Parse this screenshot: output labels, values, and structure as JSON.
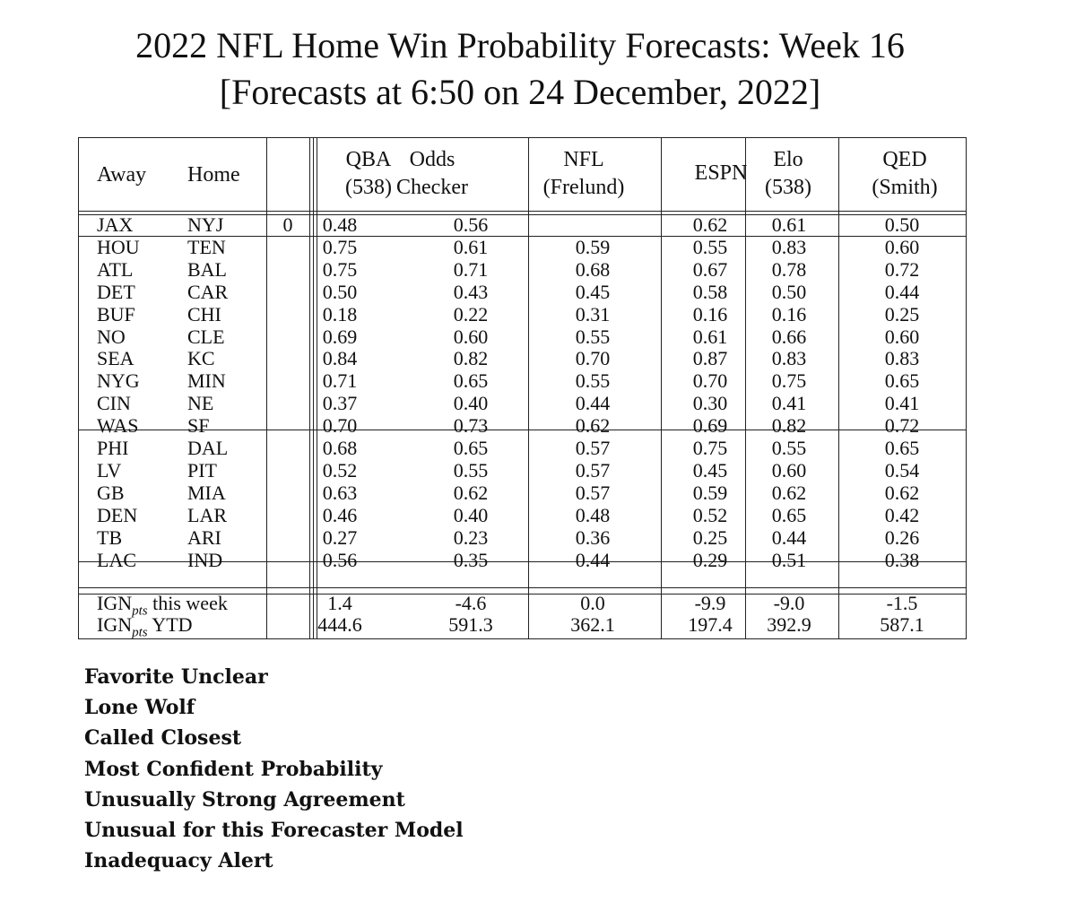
{
  "title_line1": "2022 NFL Home Win Probability Forecasts: Week 16",
  "title_line2": "[Forecasts at 6:50 on 24 December, 2022]",
  "headers": {
    "away": "Away",
    "home": "Home",
    "qba": [
      "QBA",
      "(538)"
    ],
    "odds": [
      "Odds",
      "Checker"
    ],
    "nfl": [
      "NFL",
      "(Frelund)"
    ],
    "espn": [
      "ESPN"
    ],
    "elo": [
      "Elo",
      "(538)"
    ],
    "qed": [
      "QED",
      "(Smith)"
    ]
  },
  "games": [
    {
      "away": "JAX",
      "home": "NYJ",
      "flag": "0",
      "qba": "0.48",
      "odds": "0.56",
      "nfl": "",
      "espn": "0.62",
      "elo": "0.61",
      "qed": "0.50"
    },
    {
      "away": "HOU",
      "home": "TEN",
      "flag": "",
      "qba": "0.75",
      "odds": "0.61",
      "nfl": "0.59",
      "espn": "0.55",
      "elo": "0.83",
      "qed": "0.60"
    },
    {
      "away": "ATL",
      "home": "BAL",
      "flag": "",
      "qba": "0.75",
      "odds": "0.71",
      "nfl": "0.68",
      "espn": "0.67",
      "elo": "0.78",
      "qed": "0.72"
    },
    {
      "away": "DET",
      "home": "CAR",
      "flag": "",
      "qba": "0.50",
      "odds": "0.43",
      "nfl": "0.45",
      "espn": "0.58",
      "elo": "0.50",
      "qed": "0.44"
    },
    {
      "away": "BUF",
      "home": "CHI",
      "flag": "",
      "qba": "0.18",
      "odds": "0.22",
      "nfl": "0.31",
      "espn": "0.16",
      "elo": "0.16",
      "qed": "0.25"
    },
    {
      "away": "NO",
      "home": "CLE",
      "flag": "",
      "qba": "0.69",
      "odds": "0.60",
      "nfl": "0.55",
      "espn": "0.61",
      "elo": "0.66",
      "qed": "0.60"
    },
    {
      "away": "SEA",
      "home": "KC",
      "flag": "",
      "qba": "0.84",
      "odds": "0.82",
      "nfl": "0.70",
      "espn": "0.87",
      "elo": "0.83",
      "qed": "0.83"
    },
    {
      "away": "NYG",
      "home": "MIN",
      "flag": "",
      "qba": "0.71",
      "odds": "0.65",
      "nfl": "0.55",
      "espn": "0.70",
      "elo": "0.75",
      "qed": "0.65"
    },
    {
      "away": "CIN",
      "home": "NE",
      "flag": "",
      "qba": "0.37",
      "odds": "0.40",
      "nfl": "0.44",
      "espn": "0.30",
      "elo": "0.41",
      "qed": "0.41"
    },
    {
      "away": "WAS",
      "home": "SF",
      "flag": "",
      "qba": "0.70",
      "odds": "0.73",
      "nfl": "0.62",
      "espn": "0.69",
      "elo": "0.82",
      "qed": "0.72"
    },
    {
      "away": "PHI",
      "home": "DAL",
      "flag": "",
      "qba": "0.68",
      "odds": "0.65",
      "nfl": "0.57",
      "espn": "0.75",
      "elo": "0.55",
      "qed": "0.65"
    },
    {
      "away": "LV",
      "home": "PIT",
      "flag": "",
      "qba": "0.52",
      "odds": "0.55",
      "nfl": "0.57",
      "espn": "0.45",
      "elo": "0.60",
      "qed": "0.54"
    },
    {
      "away": "GB",
      "home": "MIA",
      "flag": "",
      "qba": "0.63",
      "odds": "0.62",
      "nfl": "0.57",
      "espn": "0.59",
      "elo": "0.62",
      "qed": "0.62"
    },
    {
      "away": "DEN",
      "home": "LAR",
      "flag": "",
      "qba": "0.46",
      "odds": "0.40",
      "nfl": "0.48",
      "espn": "0.52",
      "elo": "0.65",
      "qed": "0.42"
    },
    {
      "away": "TB",
      "home": "ARI",
      "flag": "",
      "qba": "0.27",
      "odds": "0.23",
      "nfl": "0.36",
      "espn": "0.25",
      "elo": "0.44",
      "qed": "0.26"
    },
    {
      "away": "LAC",
      "home": "IND",
      "flag": "",
      "qba": "0.56",
      "odds": "0.35",
      "nfl": "0.44",
      "espn": "0.29",
      "elo": "0.51",
      "qed": "0.38"
    }
  ],
  "summary": [
    {
      "label_main": "IGN",
      "label_sub": "pts",
      "label_rest": " this week",
      "qba": "1.4",
      "odds": "-4.6",
      "nfl": "0.0",
      "espn": "-9.9",
      "elo": "-9.0",
      "qed": "-1.5"
    },
    {
      "label_main": "IGN",
      "label_sub": "pts",
      "label_rest": " YTD",
      "qba": "444.6",
      "odds": "591.3",
      "nfl": "362.1",
      "espn": "197.4",
      "elo": "392.9",
      "qed": "587.1"
    }
  ],
  "legend": [
    "Favorite Unclear",
    "Lone Wolf",
    "Called Closest",
    "Most Confident Probability",
    "Unusually Strong Agreement",
    "Unusual for this Forecaster Model",
    "Inadequacy Alert"
  ]
}
